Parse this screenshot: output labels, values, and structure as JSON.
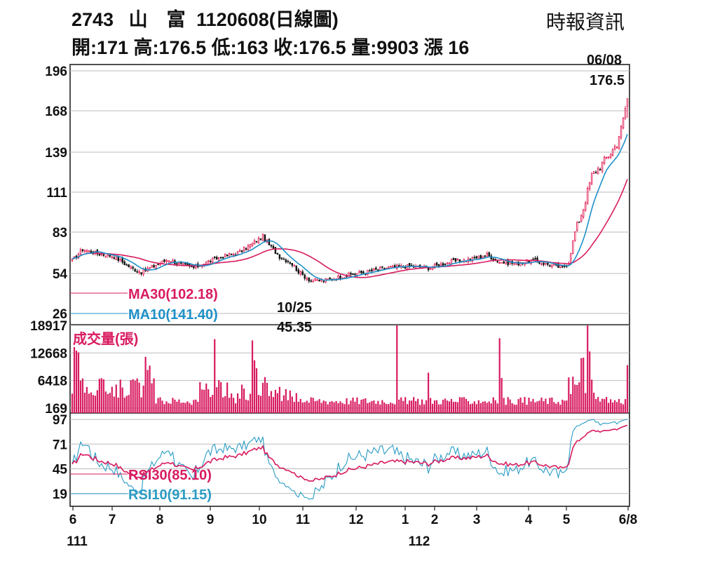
{
  "header": {
    "code": "2743",
    "name": "山　富",
    "date_code": "1120608",
    "chart_kind": "(日線圖)",
    "source": "時報資訊",
    "ohlc_line": "開:171 高:176.5 低:163 收:176.5 量:9903 漲 16"
  },
  "colors": {
    "candle_up": "#e0144c",
    "candle_down": "#111111",
    "ma30": "#d81b60",
    "ma10": "#1e90c8",
    "volume": "#d81b60",
    "rsi30": "#d81b60",
    "rsi10": "#2a9cc4",
    "grid": "#bbbbbb"
  },
  "chart_data": [
    {
      "type": "candlestick",
      "title": "",
      "yticks": [
        26,
        54,
        83,
        111,
        139,
        168,
        196
      ],
      "ylim": [
        26,
        196
      ],
      "high_annotation": {
        "date": "06/08",
        "value": "176.5"
      },
      "low_annotation": {
        "date": "10/25",
        "value": "45.35"
      },
      "series": [
        {
          "name": "MA30",
          "label": "MA30(102.18)",
          "last": 102.18
        },
        {
          "name": "MA10",
          "label": "MA10(141.40)",
          "last": 141.4
        }
      ],
      "close_anchors": [
        [
          0,
          63
        ],
        [
          5,
          71
        ],
        [
          12,
          68
        ],
        [
          20,
          66
        ],
        [
          28,
          58
        ],
        [
          33,
          55
        ],
        [
          40,
          60
        ],
        [
          46,
          64
        ],
        [
          52,
          60
        ],
        [
          58,
          58
        ],
        [
          66,
          63
        ],
        [
          72,
          66
        ],
        [
          80,
          69
        ],
        [
          86,
          75
        ],
        [
          91,
          80
        ],
        [
          94,
          74
        ],
        [
          99,
          66
        ],
        [
          104,
          62
        ],
        [
          109,
          54
        ],
        [
          114,
          49
        ],
        [
          120,
          49
        ],
        [
          126,
          51
        ],
        [
          132,
          53
        ],
        [
          140,
          55
        ],
        [
          150,
          58
        ],
        [
          160,
          59
        ],
        [
          170,
          58
        ],
        [
          180,
          62
        ],
        [
          190,
          64
        ],
        [
          198,
          67
        ],
        [
          204,
          62
        ],
        [
          212,
          61
        ],
        [
          220,
          63
        ],
        [
          228,
          60
        ],
        [
          234,
          58
        ],
        [
          237,
          62
        ],
        [
          240,
          83
        ],
        [
          244,
          100
        ],
        [
          248,
          123
        ],
        [
          252,
          129
        ],
        [
          256,
          137
        ],
        [
          260,
          145
        ],
        [
          263,
          163
        ],
        [
          265,
          176.5
        ]
      ],
      "grid": true
    },
    {
      "type": "bar",
      "title": "成交量(張)",
      "yticks": [
        169,
        6418,
        12668,
        18917
      ],
      "ylim": [
        0,
        18917
      ],
      "grid": true
    },
    {
      "type": "line",
      "title": "",
      "yticks": [
        19,
        45,
        71,
        97
      ],
      "ylim": [
        10,
        100
      ],
      "series": [
        {
          "name": "RSI30",
          "label": "RSI30(85.10)",
          "last": 85.1
        },
        {
          "name": "RSI10",
          "label": "RSI10(91.15)",
          "last": 91.15
        }
      ],
      "grid": true
    }
  ],
  "x_axis": {
    "months": [
      "6",
      "7",
      "8",
      "9",
      "10",
      "11",
      "12",
      "1",
      "2",
      "3",
      "4",
      "5",
      "6/8"
    ],
    "years": [
      "111",
      "112"
    ]
  }
}
